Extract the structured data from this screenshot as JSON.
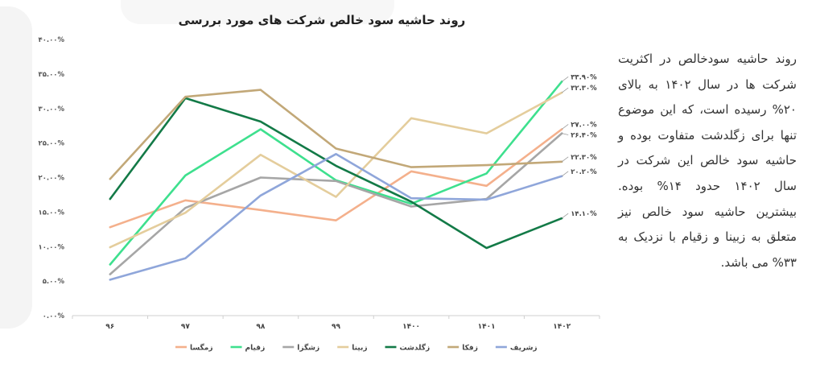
{
  "side_text": "روند حاشیه سودخالص در اکثریت شرکت ها در سال ۱۴۰۲ به بالای ۲۰% رسیده است، که این موضوع تنها برای زگلدشت متفاوت بوده و حاشیه سود خالص این شرکت در سال ۱۴۰۲ حدود ۱۴% بوده. بیشترین حاشیه سود خالص نیز متعلق به زبینا و زقیام با نزدیک به ۳۳% می باشد.",
  "chart_data": {
    "type": "line",
    "title": "روند حاشیه سود خالص شرکت های مورد بررسی",
    "categories": [
      "۹۶",
      "۹۷",
      "۹۸",
      "۹۹",
      "۱۴۰۰",
      "۱۴۰۱",
      "۱۴۰۲"
    ],
    "ylim": [
      0,
      40
    ],
    "yticks": [
      0,
      5,
      10,
      15,
      20,
      25,
      30,
      35,
      40
    ],
    "ytick_labels": [
      "۰.۰۰%",
      "۵.۰۰%",
      "۱۰.۰۰%",
      "۱۵.۰۰%",
      "۲۰.۰۰%",
      "۲۵.۰۰%",
      "۳۰.۰۰%",
      "۳۵.۰۰%",
      "۴۰.۰۰%"
    ],
    "series": [
      {
        "name": "زمگسا",
        "color": "#f4b08c",
        "values": [
          12.8,
          16.7,
          15.3,
          13.8,
          20.9,
          18.8,
          27.0
        ],
        "end_label": "۲۷.۰۰%"
      },
      {
        "name": "زقیام",
        "color": "#3ee08e",
        "values": [
          7.4,
          20.3,
          27.0,
          19.6,
          16.2,
          20.6,
          33.9
        ],
        "end_label": "۳۳.۹۰%"
      },
      {
        "name": "زشگزا",
        "color": "#a6a6a6",
        "values": [
          6.0,
          15.6,
          20.0,
          19.5,
          15.8,
          16.9,
          26.4
        ],
        "end_label": "۲۶.۴۰%"
      },
      {
        "name": "زبینا",
        "color": "#e4cd9c",
        "values": [
          9.9,
          14.9,
          23.3,
          17.2,
          28.6,
          26.4,
          32.3
        ],
        "end_label": "۳۲.۳۰%"
      },
      {
        "name": "زگلدشت",
        "color": "#137a47",
        "values": [
          16.9,
          31.5,
          28.1,
          21.7,
          16.5,
          9.8,
          14.1
        ],
        "end_label": "۱۴.۱۰%"
      },
      {
        "name": "زفکا",
        "color": "#c2a878",
        "values": [
          19.8,
          31.7,
          32.7,
          24.2,
          21.5,
          21.8,
          22.3
        ],
        "end_label": "۲۲.۳۰%"
      },
      {
        "name": "زشریف",
        "color": "#8fa6da",
        "values": [
          5.2,
          8.3,
          17.4,
          23.4,
          17.0,
          16.8,
          20.2
        ],
        "end_label": "۲۰.۲۰%"
      }
    ]
  }
}
